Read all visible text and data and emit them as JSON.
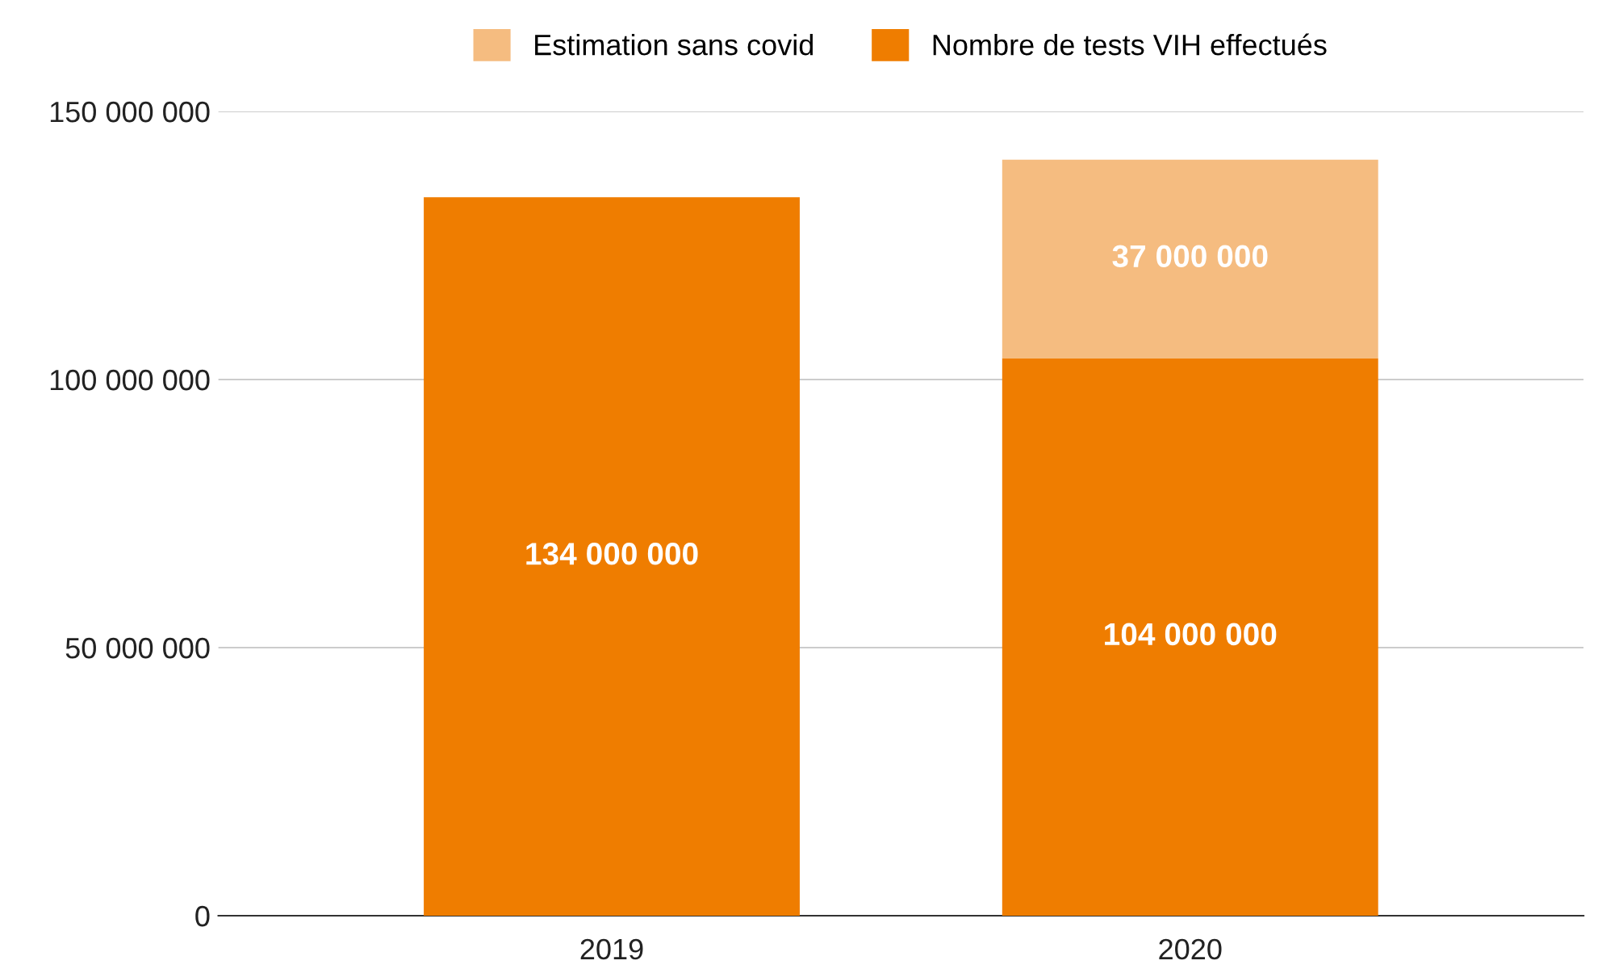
{
  "chart_data": {
    "type": "bar",
    "stacked": true,
    "categories": [
      "2019",
      "2020"
    ],
    "series": [
      {
        "name": "Nombre de tests VIH effectués",
        "color": "#ef7d00",
        "values": [
          134000000,
          104000000
        ],
        "value_labels": [
          "134 000 000",
          "104 000 000"
        ]
      },
      {
        "name": "Estimation sans covid",
        "color": "#f5bc80",
        "values": [
          null,
          37000000
        ],
        "value_labels": [
          null,
          "37 000 000"
        ]
      }
    ],
    "ylim": [
      0,
      150000000
    ],
    "yticks": [
      {
        "value": 0,
        "label": "0"
      },
      {
        "value": 50000000,
        "label": "50 000 000"
      },
      {
        "value": 100000000,
        "label": "100 000 000"
      },
      {
        "value": 150000000,
        "label": "150 000 000"
      }
    ],
    "grid": "y",
    "legend": "top"
  }
}
